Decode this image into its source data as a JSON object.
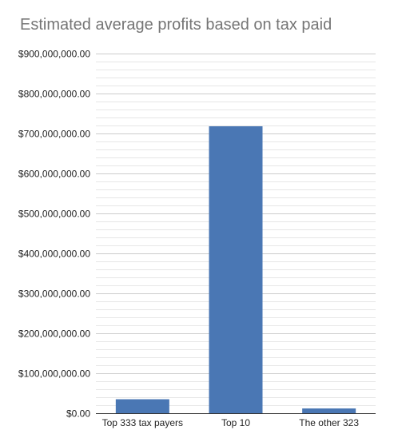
{
  "chart_data": {
    "type": "bar",
    "title": "Estimated average profits based on tax paid",
    "categories": [
      "Top 333 tax payers",
      "Top 10",
      "The other 323"
    ],
    "values": [
      35000000,
      718000000,
      12000000
    ],
    "ylim": [
      0,
      900000000
    ],
    "yticks": [
      0,
      100000000,
      200000000,
      300000000,
      400000000,
      500000000,
      600000000,
      700000000,
      800000000,
      900000000
    ],
    "ytick_labels": [
      "$0.00",
      "$100,000,000.00",
      "$200,000,000.00",
      "$300,000,000.00",
      "$400,000,000.00",
      "$500,000,000.00",
      "$600,000,000.00",
      "$700,000,000.00",
      "$800,000,000.00",
      "$900,000,000.00"
    ],
    "minor_gridlines_per_major": 5,
    "grid": true,
    "xlabel": "",
    "ylabel": "",
    "bar_color": "#4a77b4",
    "grid_color": "#cccccc",
    "minor_grid_color": "#e6e6e6"
  }
}
